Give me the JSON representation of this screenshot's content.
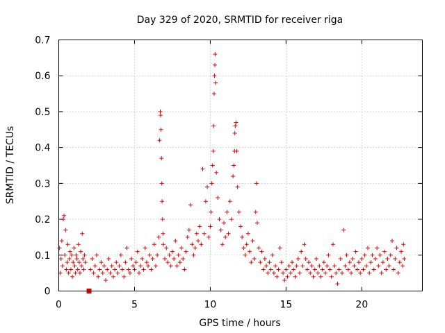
{
  "chart_data": {
    "type": "scatter",
    "title": "Day 329 of 2020, SRMTID for receiver riga",
    "xlabel": "GPS time / hours",
    "ylabel": "SRMTID / TECUs",
    "xlim": [
      0,
      24
    ],
    "ylim": [
      0,
      0.7
    ],
    "xticks": [
      0,
      5,
      10,
      15,
      20
    ],
    "xtick_labels": [
      "0",
      "5",
      "10",
      "15",
      "20"
    ],
    "yticks": [
      0,
      0.1,
      0.2,
      0.3,
      0.4,
      0.5,
      0.6,
      0.7
    ],
    "ytick_labels": [
      "0",
      "0.1",
      "0.2",
      "0.3",
      "0.4",
      "0.5",
      "0.6",
      "0.7"
    ],
    "grid": true,
    "marker": "plus",
    "series_color": "#e00000",
    "gap_marker": {
      "x": 2.0,
      "y": 0.0,
      "shape": "square"
    },
    "series": [
      {
        "name": "SRMTID",
        "points": [
          [
            0.05,
            0.12
          ],
          [
            0.1,
            0.05
          ],
          [
            0.15,
            0.09
          ],
          [
            0.2,
            0.14
          ],
          [
            0.25,
            0.07
          ],
          [
            0.3,
            0.2
          ],
          [
            0.35,
            0.21
          ],
          [
            0.4,
            0.1
          ],
          [
            0.45,
            0.17
          ],
          [
            0.5,
            0.06
          ],
          [
            0.55,
            0.08
          ],
          [
            0.6,
            0.13
          ],
          [
            0.65,
            0.05
          ],
          [
            0.7,
            0.09
          ],
          [
            0.75,
            0.11
          ],
          [
            0.8,
            0.06
          ],
          [
            0.85,
            0.1
          ],
          [
            0.9,
            0.04
          ],
          [
            0.95,
            0.08
          ],
          [
            1.0,
            0.12
          ],
          [
            1.05,
            0.07
          ],
          [
            1.1,
            0.05
          ],
          [
            1.15,
            0.1
          ],
          [
            1.2,
            0.09
          ],
          [
            1.25,
            0.06
          ],
          [
            1.3,
            0.13
          ],
          [
            1.35,
            0.08
          ],
          [
            1.4,
            0.05
          ],
          [
            1.45,
            0.11
          ],
          [
            1.5,
            0.07
          ],
          [
            1.55,
            0.16
          ],
          [
            1.6,
            0.09
          ],
          [
            1.65,
            0.06
          ],
          [
            1.7,
            0.1
          ],
          [
            1.75,
            0.08
          ],
          [
            2.1,
            0.06
          ],
          [
            2.2,
            0.09
          ],
          [
            2.3,
            0.05
          ],
          [
            2.4,
            0.07
          ],
          [
            2.5,
            0.1
          ],
          [
            2.6,
            0.04
          ],
          [
            2.7,
            0.06
          ],
          [
            2.8,
            0.08
          ],
          [
            2.9,
            0.05
          ],
          [
            3.0,
            0.07
          ],
          [
            3.1,
            0.03
          ],
          [
            3.2,
            0.06
          ],
          [
            3.3,
            0.09
          ],
          [
            3.4,
            0.05
          ],
          [
            3.5,
            0.07
          ],
          [
            3.6,
            0.04
          ],
          [
            3.7,
            0.06
          ],
          [
            3.8,
            0.08
          ],
          [
            3.9,
            0.05
          ],
          [
            4.0,
            0.07
          ],
          [
            4.1,
            0.1
          ],
          [
            4.2,
            0.06
          ],
          [
            4.3,
            0.04
          ],
          [
            4.4,
            0.08
          ],
          [
            4.5,
            0.12
          ],
          [
            4.6,
            0.06
          ],
          [
            4.7,
            0.05
          ],
          [
            4.8,
            0.09
          ],
          [
            4.9,
            0.07
          ],
          [
            5.0,
            0.06
          ],
          [
            5.1,
            0.08
          ],
          [
            5.2,
            0.11
          ],
          [
            5.3,
            0.05
          ],
          [
            5.4,
            0.07
          ],
          [
            5.5,
            0.09
          ],
          [
            5.6,
            0.06
          ],
          [
            5.7,
            0.12
          ],
          [
            5.8,
            0.08
          ],
          [
            5.9,
            0.07
          ],
          [
            6.0,
            0.1
          ],
          [
            6.1,
            0.06
          ],
          [
            6.2,
            0.09
          ],
          [
            6.3,
            0.13
          ],
          [
            6.4,
            0.07
          ],
          [
            6.5,
            0.1
          ],
          [
            6.6,
            0.15
          ],
          [
            6.65,
            0.42
          ],
          [
            6.7,
            0.5
          ],
          [
            6.72,
            0.49
          ],
          [
            6.75,
            0.45
          ],
          [
            6.78,
            0.37
          ],
          [
            6.8,
            0.3
          ],
          [
            6.82,
            0.25
          ],
          [
            6.85,
            0.2
          ],
          [
            6.88,
            0.16
          ],
          [
            6.9,
            0.13
          ],
          [
            7.0,
            0.09
          ],
          [
            7.1,
            0.12
          ],
          [
            7.2,
            0.08
          ],
          [
            7.3,
            0.1
          ],
          [
            7.4,
            0.07
          ],
          [
            7.5,
            0.11
          ],
          [
            7.6,
            0.09
          ],
          [
            7.7,
            0.14
          ],
          [
            7.8,
            0.07
          ],
          [
            7.9,
            0.1
          ],
          [
            8.0,
            0.08
          ],
          [
            8.1,
            0.12
          ],
          [
            8.2,
            0.09
          ],
          [
            8.3,
            0.06
          ],
          [
            8.4,
            0.11
          ],
          [
            8.5,
            0.15
          ],
          [
            8.6,
            0.17
          ],
          [
            8.7,
            0.24
          ],
          [
            8.8,
            0.13
          ],
          [
            8.9,
            0.1
          ],
          [
            9.0,
            0.12
          ],
          [
            9.1,
            0.16
          ],
          [
            9.2,
            0.14
          ],
          [
            9.3,
            0.18
          ],
          [
            9.4,
            0.13
          ],
          [
            9.5,
            0.34
          ],
          [
            9.6,
            0.16
          ],
          [
            9.7,
            0.25
          ],
          [
            9.8,
            0.29
          ],
          [
            9.9,
            0.15
          ],
          [
            10.0,
            0.18
          ],
          [
            10.05,
            0.22
          ],
          [
            10.1,
            0.3
          ],
          [
            10.15,
            0.35
          ],
          [
            10.2,
            0.39
          ],
          [
            10.22,
            0.46
          ],
          [
            10.25,
            0.55
          ],
          [
            10.28,
            0.6
          ],
          [
            10.3,
            0.63
          ],
          [
            10.32,
            0.66
          ],
          [
            10.35,
            0.58
          ],
          [
            10.4,
            0.33
          ],
          [
            10.5,
            0.26
          ],
          [
            10.6,
            0.2
          ],
          [
            10.7,
            0.17
          ],
          [
            10.8,
            0.13
          ],
          [
            10.9,
            0.19
          ],
          [
            11.0,
            0.15
          ],
          [
            11.1,
            0.22
          ],
          [
            11.2,
            0.16
          ],
          [
            11.3,
            0.25
          ],
          [
            11.4,
            0.2
          ],
          [
            11.5,
            0.32
          ],
          [
            11.55,
            0.35
          ],
          [
            11.6,
            0.39
          ],
          [
            11.62,
            0.44
          ],
          [
            11.65,
            0.46
          ],
          [
            11.7,
            0.47
          ],
          [
            11.75,
            0.39
          ],
          [
            11.8,
            0.29
          ],
          [
            11.9,
            0.22
          ],
          [
            12.0,
            0.18
          ],
          [
            12.1,
            0.15
          ],
          [
            12.2,
            0.12
          ],
          [
            12.3,
            0.1
          ],
          [
            12.4,
            0.13
          ],
          [
            12.5,
            0.16
          ],
          [
            12.6,
            0.11
          ],
          [
            12.7,
            0.08
          ],
          [
            12.8,
            0.14
          ],
          [
            12.9,
            0.09
          ],
          [
            13.0,
            0.22
          ],
          [
            13.05,
            0.3
          ],
          [
            13.1,
            0.19
          ],
          [
            13.2,
            0.12
          ],
          [
            13.3,
            0.08
          ],
          [
            13.4,
            0.11
          ],
          [
            13.5,
            0.06
          ],
          [
            13.6,
            0.09
          ],
          [
            13.7,
            0.07
          ],
          [
            13.8,
            0.05
          ],
          [
            13.9,
            0.08
          ],
          [
            14.0,
            0.06
          ],
          [
            14.1,
            0.1
          ],
          [
            14.2,
            0.05
          ],
          [
            14.3,
            0.07
          ],
          [
            14.4,
            0.04
          ],
          [
            14.5,
            0.06
          ],
          [
            14.6,
            0.12
          ],
          [
            14.7,
            0.08
          ],
          [
            14.8,
            0.05
          ],
          [
            14.9,
            0.03
          ],
          [
            15.0,
            0.06
          ],
          [
            15.1,
            0.04
          ],
          [
            15.2,
            0.07
          ],
          [
            15.3,
            0.05
          ],
          [
            15.4,
            0.08
          ],
          [
            15.5,
            0.06
          ],
          [
            15.6,
            0.04
          ],
          [
            15.7,
            0.07
          ],
          [
            15.8,
            0.09
          ],
          [
            15.9,
            0.05
          ],
          [
            16.0,
            0.11
          ],
          [
            16.1,
            0.07
          ],
          [
            16.2,
            0.13
          ],
          [
            16.3,
            0.09
          ],
          [
            16.4,
            0.06
          ],
          [
            16.5,
            0.08
          ],
          [
            16.6,
            0.05
          ],
          [
            16.7,
            0.07
          ],
          [
            16.8,
            0.04
          ],
          [
            16.9,
            0.06
          ],
          [
            17.0,
            0.09
          ],
          [
            17.1,
            0.05
          ],
          [
            17.2,
            0.07
          ],
          [
            17.3,
            0.04
          ],
          [
            17.4,
            0.06
          ],
          [
            17.5,
            0.08
          ],
          [
            17.6,
            0.05
          ],
          [
            17.7,
            0.07
          ],
          [
            17.8,
            0.1
          ],
          [
            17.9,
            0.06
          ],
          [
            18.0,
            0.04
          ],
          [
            18.1,
            0.13
          ],
          [
            18.2,
            0.07
          ],
          [
            18.3,
            0.05
          ],
          [
            18.4,
            0.02
          ],
          [
            18.5,
            0.06
          ],
          [
            18.6,
            0.09
          ],
          [
            18.7,
            0.05
          ],
          [
            18.8,
            0.17
          ],
          [
            18.9,
            0.07
          ],
          [
            19.0,
            0.1
          ],
          [
            19.1,
            0.06
          ],
          [
            19.2,
            0.08
          ],
          [
            19.3,
            0.05
          ],
          [
            19.4,
            0.09
          ],
          [
            19.5,
            0.07
          ],
          [
            19.6,
            0.11
          ],
          [
            19.7,
            0.06
          ],
          [
            19.8,
            0.08
          ],
          [
            19.9,
            0.05
          ],
          [
            20.0,
            0.09
          ],
          [
            20.1,
            0.06
          ],
          [
            20.2,
            0.1
          ],
          [
            20.3,
            0.07
          ],
          [
            20.4,
            0.12
          ],
          [
            20.5,
            0.05
          ],
          [
            20.6,
            0.08
          ],
          [
            20.7,
            0.1
          ],
          [
            20.8,
            0.06
          ],
          [
            20.9,
            0.09
          ],
          [
            21.0,
            0.12
          ],
          [
            21.1,
            0.07
          ],
          [
            21.2,
            0.1
          ],
          [
            21.3,
            0.05
          ],
          [
            21.4,
            0.08
          ],
          [
            21.5,
            0.11
          ],
          [
            21.6,
            0.06
          ],
          [
            21.7,
            0.09
          ],
          [
            21.8,
            0.07
          ],
          [
            21.9,
            0.1
          ],
          [
            22.0,
            0.14
          ],
          [
            22.1,
            0.06
          ],
          [
            22.2,
            0.09
          ],
          [
            22.3,
            0.12
          ],
          [
            22.4,
            0.05
          ],
          [
            22.5,
            0.08
          ],
          [
            22.6,
            0.11
          ],
          [
            22.7,
            0.07
          ],
          [
            22.75,
            0.13
          ],
          [
            22.8,
            0.09
          ]
        ]
      }
    ]
  }
}
